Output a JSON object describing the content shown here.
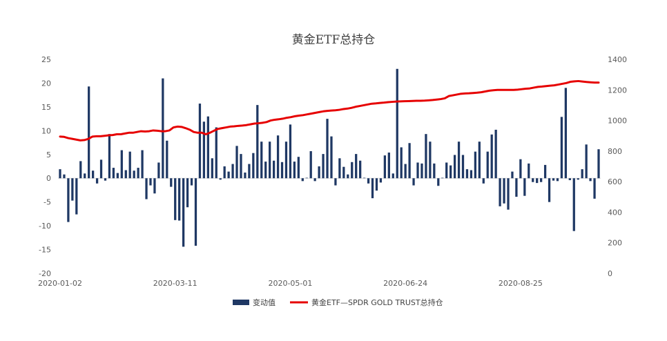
{
  "chart_data": {
    "type": "bar+line",
    "title": "黄金ETF总持仓",
    "x_tick_labels": [
      "2020-01-02",
      "2020-03-11",
      "2020-05-01",
      "2020-06-24",
      "2020-08-25"
    ],
    "left_axis": {
      "ticks": [
        25,
        20,
        15,
        10,
        5,
        0,
        -5,
        -10,
        -15,
        -20
      ],
      "ylim": [
        -20,
        25
      ]
    },
    "right_axis": {
      "ticks": [
        1400,
        1200,
        1000,
        800,
        600,
        400,
        200,
        0
      ],
      "ylim": [
        0,
        1400
      ]
    },
    "grid": false,
    "legend_position": "bottom",
    "colors": {
      "bars": "#1f3864",
      "line": "#e60000"
    },
    "series": [
      {
        "name": "变动值",
        "type": "bar",
        "axis": "left",
        "values": [
          1.9,
          0.8,
          -9.2,
          -4.7,
          -7.6,
          3.6,
          1.0,
          19.3,
          1.6,
          -1.1,
          3.9,
          -0.5,
          9.3,
          2.2,
          1.1,
          5.9,
          1.7,
          5.6,
          1.6,
          2.2,
          5.9,
          -4.4,
          -1.5,
          -3.2,
          3.3,
          21.0,
          7.9,
          -1.8,
          -8.8,
          -8.9,
          -14.4,
          -6.1,
          -1.5,
          -14.2,
          15.7,
          11.9,
          13.0,
          4.2,
          10.7,
          -0.3,
          2.5,
          1.4,
          3.0,
          6.8,
          5.1,
          1.2,
          3.0,
          5.3,
          15.4,
          7.7,
          3.5,
          7.7,
          3.7,
          9.0,
          3.4,
          7.7,
          11.3,
          3.5,
          4.5,
          -0.6,
          0.1,
          5.7,
          -0.6,
          2.5,
          5.1,
          12.5,
          8.8,
          -1.5,
          4.2,
          2.4,
          0.8,
          3.4,
          5.1,
          3.7,
          0.1,
          -1.1,
          -4.2,
          -2.6,
          -0.9,
          4.8,
          5.4,
          1.0,
          23.0,
          6.5,
          3.0,
          7.4,
          -1.5,
          3.3,
          3.1,
          9.3,
          7.7,
          3.1,
          -1.6,
          0.1,
          3.3,
          2.7,
          4.9,
          7.7,
          4.9,
          1.9,
          1.7,
          5.6,
          7.7,
          -1.1,
          5.6,
          9.2,
          10.2,
          -5.9,
          -5.3,
          -6.6,
          1.4,
          -3.9,
          4.0,
          -3.7,
          3.1,
          -0.8,
          -1.0,
          -0.8,
          2.8,
          -5.0,
          -0.5,
          -0.6,
          12.9,
          19.0,
          -0.4,
          -11.1,
          -0.3,
          1.9,
          7.1,
          -0.6,
          -4.3,
          6.1
        ]
      },
      {
        "name": "黄金ETF—SPDR GOLD TRUST总持仓",
        "type": "line",
        "axis": "right",
        "values": [
          895,
          893,
          885,
          880,
          875,
          870,
          872,
          880,
          895,
          897,
          897,
          900,
          903,
          905,
          910,
          910,
          915,
          920,
          920,
          925,
          930,
          928,
          930,
          935,
          933,
          930,
          930,
          935,
          955,
          960,
          958,
          950,
          940,
          925,
          920,
          920,
          910,
          920,
          933,
          945,
          950,
          955,
          960,
          962,
          965,
          967,
          970,
          975,
          980,
          982,
          985,
          990,
          1000,
          1005,
          1008,
          1012,
          1018,
          1022,
          1028,
          1032,
          1035,
          1040,
          1045,
          1050,
          1055,
          1060,
          1063,
          1065,
          1067,
          1070,
          1075,
          1078,
          1083,
          1090,
          1095,
          1100,
          1105,
          1110,
          1112,
          1115,
          1117,
          1120,
          1122,
          1124,
          1125,
          1126,
          1127,
          1128,
          1129,
          1129,
          1130,
          1132,
          1134,
          1137,
          1140,
          1145,
          1160,
          1165,
          1170,
          1175,
          1177,
          1178,
          1180,
          1182,
          1185,
          1190,
          1195,
          1198,
          1200,
          1200,
          1200,
          1200,
          1200,
          1202,
          1205,
          1208,
          1210,
          1215,
          1220,
          1222,
          1225,
          1228,
          1230,
          1235,
          1240,
          1245,
          1253,
          1256,
          1258,
          1255,
          1252,
          1250,
          1248,
          1248
        ]
      }
    ]
  },
  "legend": {
    "bar_label": "变动值",
    "line_label": "黄金ETF—SPDR GOLD TRUST总持仓"
  }
}
